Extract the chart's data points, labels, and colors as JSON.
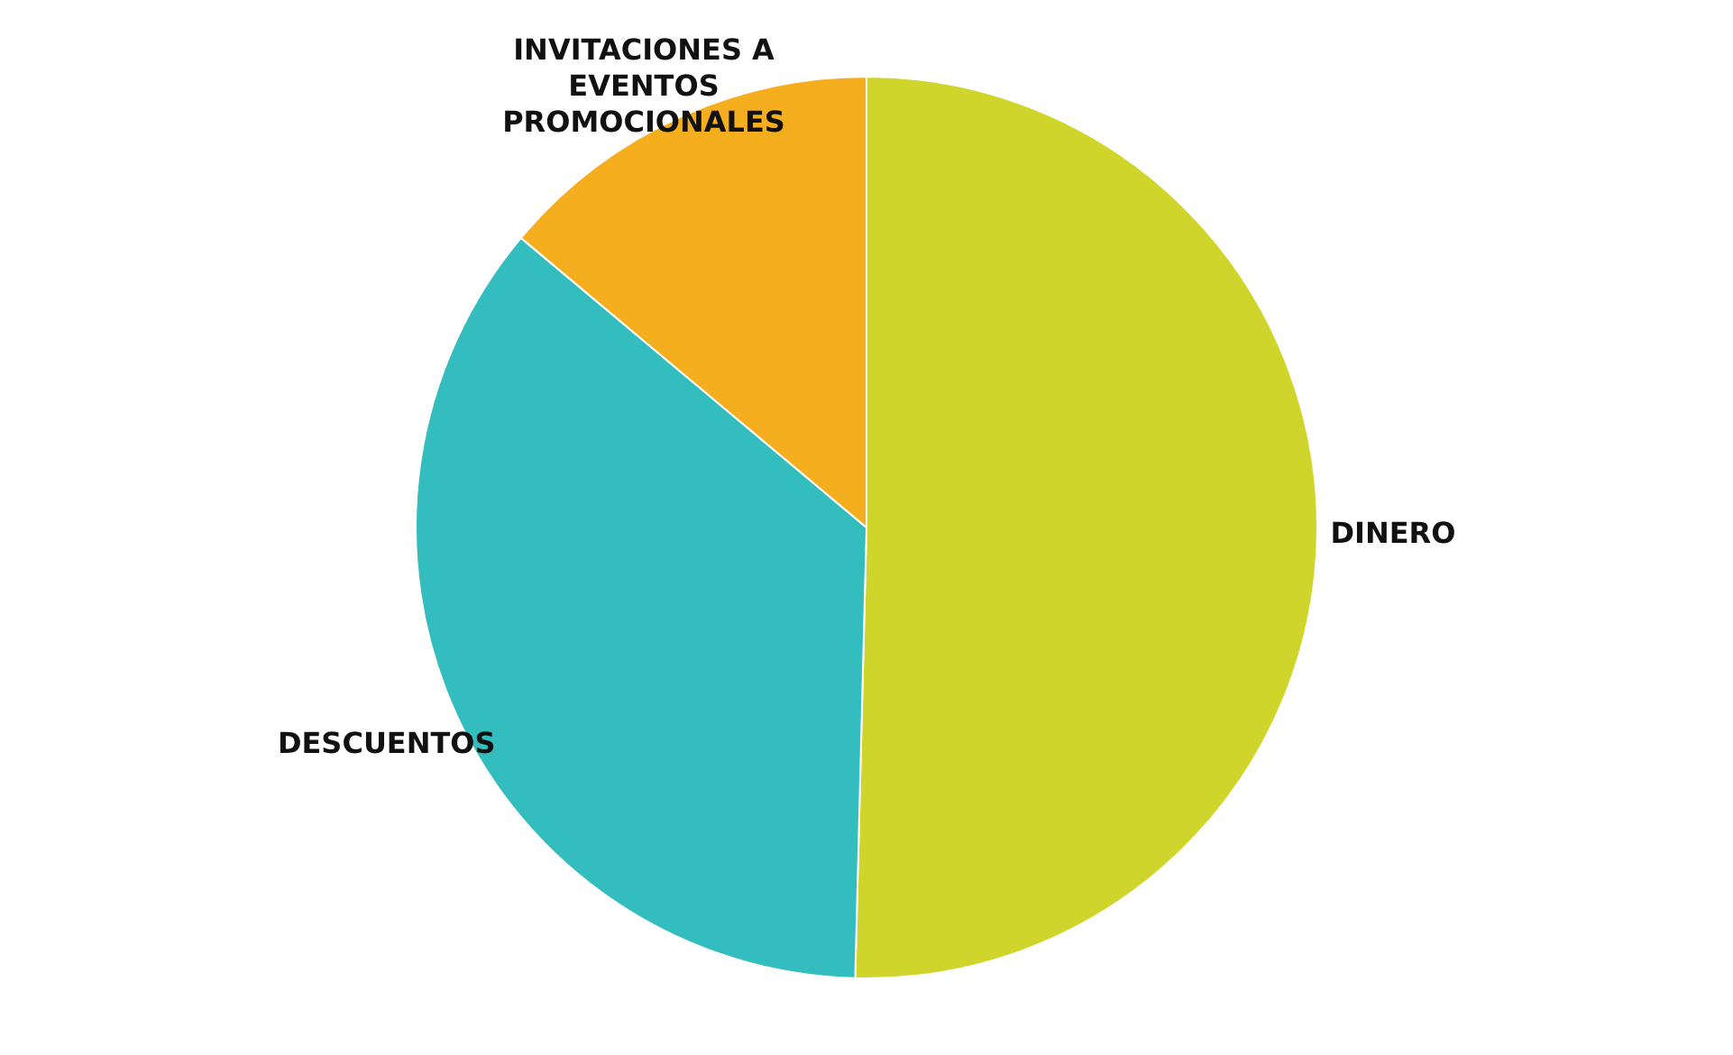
{
  "chart_data": {
    "type": "pie",
    "categories": [
      "DINERO",
      "DESCUENTOS",
      "INVITACIONES A EVENTOS PROMOCIONALES"
    ],
    "values": [
      50.4,
      35.7,
      13.9
    ],
    "colors": [
      "#cfd52a",
      "#33bdbf",
      "#f5af1e"
    ]
  }
}
